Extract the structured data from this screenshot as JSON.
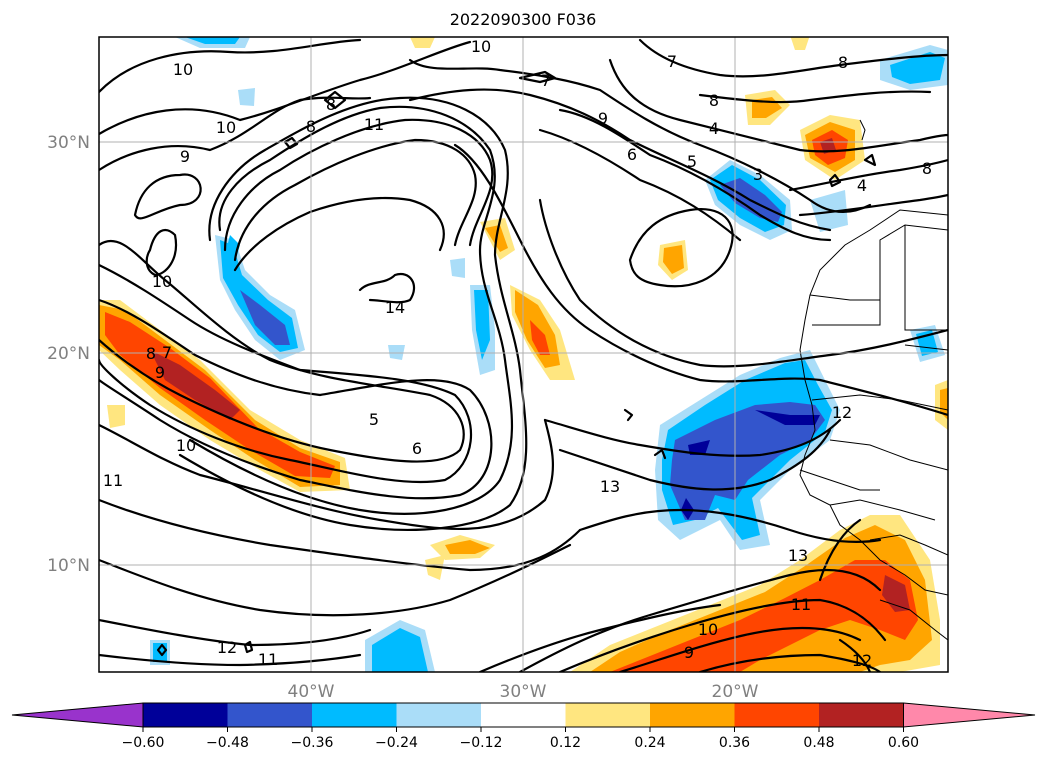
{
  "title": "2022090300 F036",
  "map": {
    "lon_labels": [
      "40°W",
      "30°W",
      "20°W"
    ],
    "lat_labels": [
      "30°N",
      "20°N",
      "10°N"
    ],
    "contour_labels": [
      "10",
      "10",
      "10",
      "9",
      "8",
      "8",
      "11",
      "7",
      "7",
      "8",
      "8",
      "9",
      "6",
      "5",
      "4",
      "3",
      "4",
      "8",
      "10",
      "14",
      "7",
      "8",
      "9",
      "5",
      "6",
      "10",
      "11",
      "13",
      "12",
      "13",
      "11",
      "10",
      "9",
      "12",
      "12",
      "11"
    ]
  },
  "colors": {
    "neg_060_below": "#9933cc",
    "neg_060_048": "#000099",
    "neg_048_036": "#3355cc",
    "neg_036_024": "#00bbff",
    "neg_024_012": "#aaddf8",
    "near_zero": "#ffffff",
    "pos_012_024": "#ffe680",
    "pos_024_036": "#ffa500",
    "pos_036_048": "#ff4500",
    "pos_048_060": "#b22222",
    "pos_060_above": "#ff88aa"
  },
  "colorbar": {
    "ticks": [
      "−0.60",
      "−0.48",
      "−0.36",
      "−0.24",
      "−0.12",
      "0.12",
      "0.24",
      "0.36",
      "0.48",
      "0.60"
    ],
    "colors": [
      "#9933cc",
      "#000099",
      "#3355cc",
      "#00bbff",
      "#aaddf8",
      "#ffffff",
      "#ffe680",
      "#ffa500",
      "#ff4500",
      "#b22222",
      "#ff88aa"
    ]
  }
}
